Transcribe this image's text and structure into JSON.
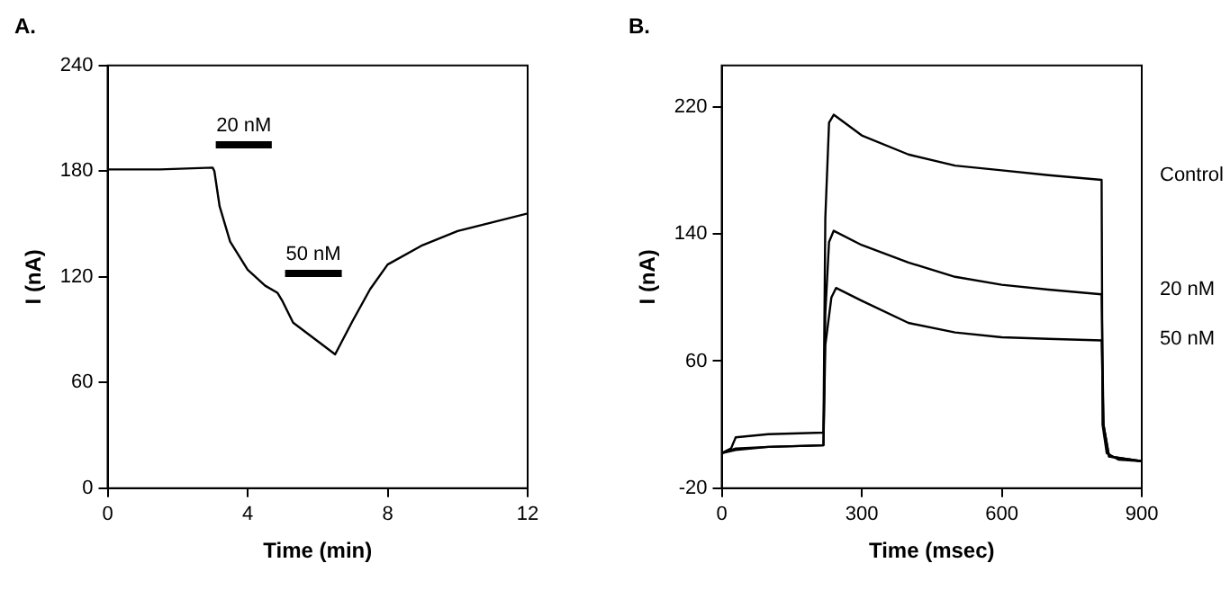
{
  "chart_data": [
    {
      "type": "line",
      "title": "A.",
      "xlabel": "Time (min)",
      "ylabel": "I (nA)",
      "x": [
        0,
        1.5,
        3,
        3.05,
        3.2,
        3.5,
        4,
        4.5,
        4.85,
        5.0,
        5.3,
        5.7,
        6.5,
        7,
        7.5,
        8,
        9,
        10,
        11,
        12
      ],
      "series": [
        {
          "color": "#000000",
          "values": [
            181,
            181,
            182,
            180,
            160,
            140,
            124,
            115,
            111,
            106,
            94,
            88,
            76,
            95,
            113,
            127,
            138,
            146,
            151,
            156
          ]
        },
        {
          "name": "20 nM",
          "color": "#000000",
          "x": [
            3.09,
            4.69
          ],
          "values": [
            195,
            195
          ]
        },
        {
          "name": "50 nM",
          "color": "#000000",
          "x": [
            5.07,
            6.69
          ],
          "values": [
            122,
            122
          ]
        }
      ],
      "xlim": [
        0,
        12
      ],
      "xticks": [
        0,
        4,
        8,
        12
      ],
      "ylim": [
        0,
        240
      ],
      "yticks": [
        0,
        60,
        120,
        180,
        240
      ],
      "grid": false,
      "legend": false,
      "marker": "none",
      "line_style": "solid"
    },
    {
      "type": "line",
      "title": "B.",
      "xlabel": "Time (msec)",
      "ylabel": "I (nA)",
      "series": [
        {
          "name": "Control",
          "color": "#000000",
          "x": [
            0,
            20,
            30,
            100,
            218,
            222,
            230,
            240,
            300,
            400,
            500,
            600,
            700,
            814,
            816,
            825,
            850,
            900
          ],
          "values": [
            2,
            5,
            12,
            14,
            15,
            150,
            210,
            215,
            202,
            190,
            183,
            180,
            177,
            174,
            20,
            2,
            -2,
            -3
          ]
        },
        {
          "name": "20 nM",
          "color": "#000000",
          "x": [
            0,
            30,
            100,
            218,
            222,
            230,
            240,
            300,
            400,
            500,
            600,
            700,
            814,
            818,
            830,
            900
          ],
          "values": [
            2,
            5,
            6,
            7,
            90,
            135,
            142,
            133,
            122,
            113,
            108,
            105,
            102,
            20,
            0,
            -3
          ]
        },
        {
          "name": "50 nM",
          "color": "#000000",
          "x": [
            0,
            30,
            100,
            218,
            222,
            235,
            245,
            300,
            400,
            500,
            600,
            700,
            814,
            818,
            830,
            900
          ],
          "values": [
            2,
            4,
            6,
            7,
            70,
            100,
            106,
            98,
            84,
            78,
            75,
            74,
            73,
            20,
            0,
            -3
          ]
        }
      ],
      "xlim": [
        0,
        900
      ],
      "xticks": [
        0,
        300,
        600,
        900
      ],
      "ylim": [
        -20,
        246
      ],
      "yticks": [
        -20,
        60,
        140,
        220
      ],
      "grid": false,
      "legend": false,
      "marker": "none",
      "line_style": "solid"
    }
  ]
}
